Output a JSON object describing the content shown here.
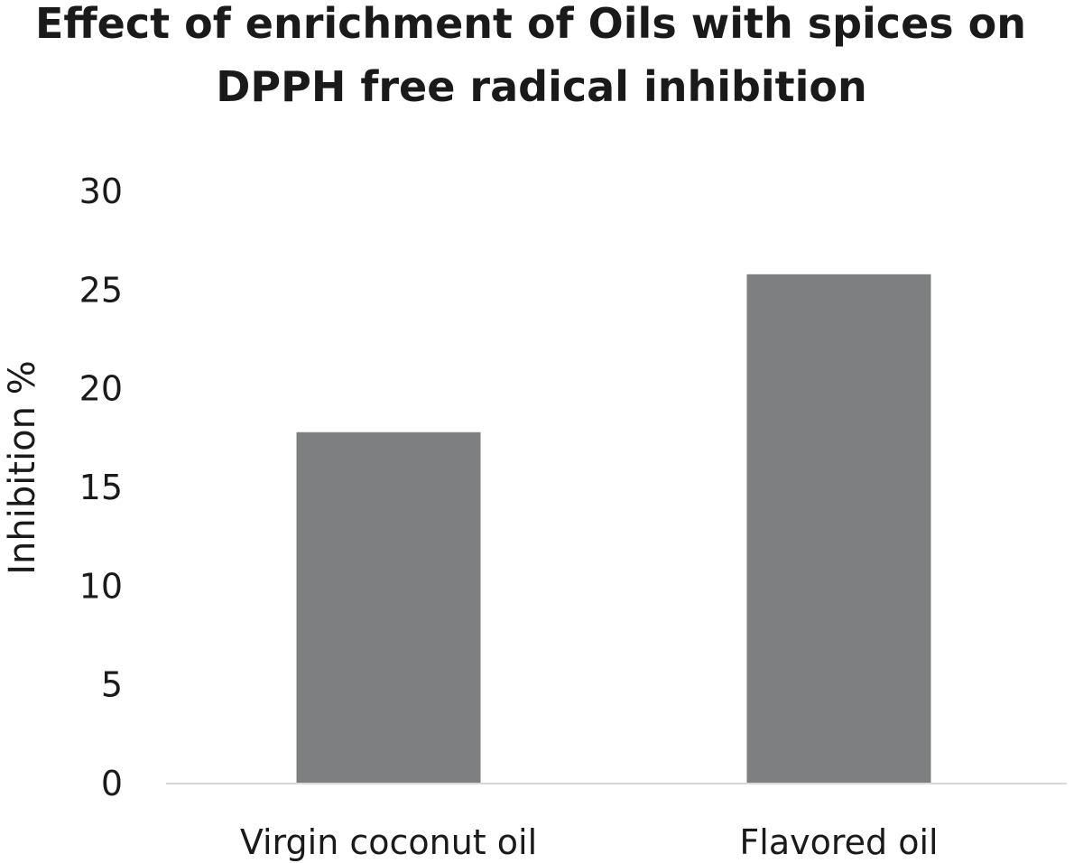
{
  "chart_data": {
    "type": "bar",
    "title_lines": [
      "Effect of enrichment of Oils with spices on",
      "DPPH free radical inhibition"
    ],
    "title": "Effect of enrichment of Oils with spices on DPPH free radical inhibition",
    "categories": [
      "Virgin coconut oil",
      "Flavored oil"
    ],
    "values": [
      17.8,
      25.8
    ],
    "xlabel": "",
    "ylabel": "Inhibition %",
    "ylim": [
      0,
      30
    ],
    "yticks": [
      0,
      5,
      10,
      15,
      20,
      25,
      30
    ],
    "grid": false,
    "legend": "none",
    "bar_color": "#7e7f81",
    "axis_color": "#d9d9d9"
  }
}
